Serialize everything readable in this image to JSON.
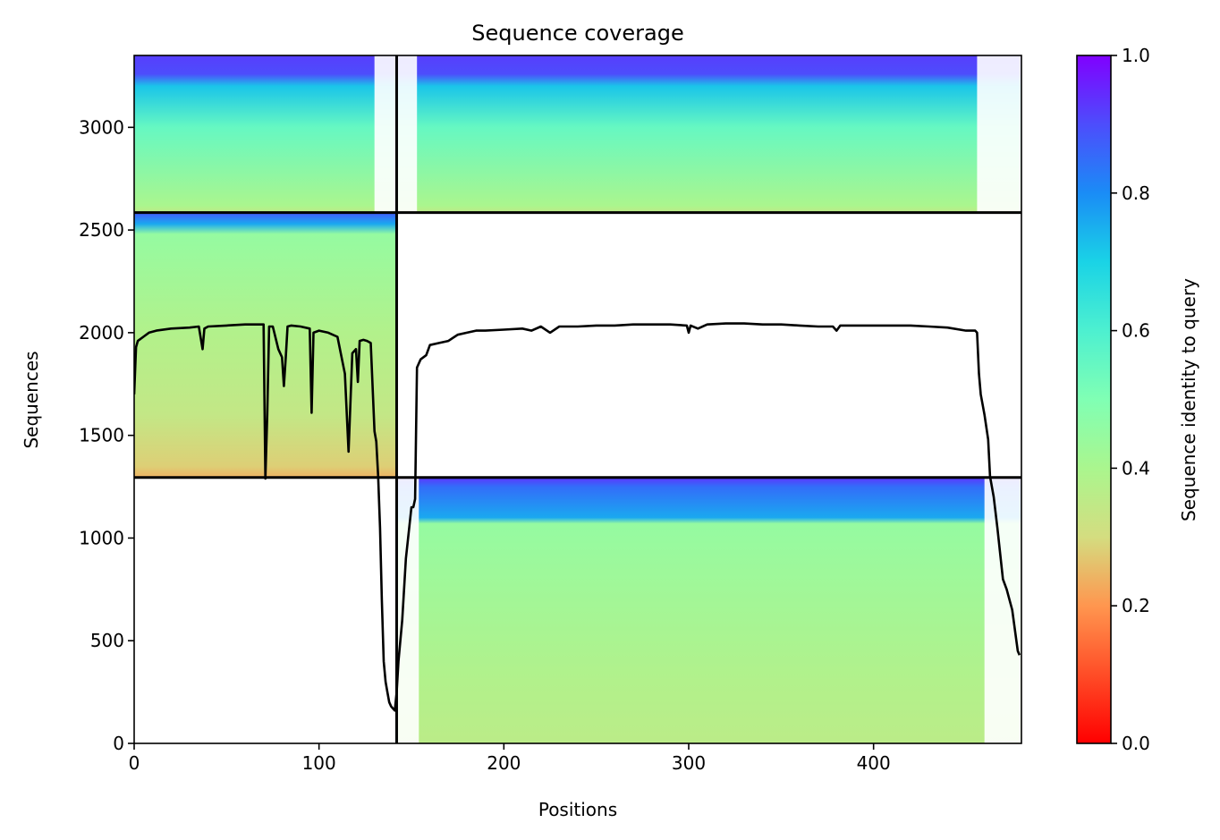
{
  "chart_data": {
    "type": "heatmap",
    "title": "Sequence coverage",
    "xlabel": "Positions",
    "ylabel": "Sequences",
    "xlim": [
      0,
      480
    ],
    "ylim": [
      0,
      3350
    ],
    "x_ticks": [
      0,
      100,
      200,
      300,
      400
    ],
    "y_ticks": [
      0,
      500,
      1000,
      1500,
      2000,
      2500,
      3000
    ],
    "colorbar": {
      "label": "Sequence identity to query",
      "range": [
        0,
        1
      ],
      "ticks": [
        0.0,
        0.2,
        0.4,
        0.6,
        0.8,
        1.0
      ],
      "tick_labels": [
        "0.0",
        "0.2",
        "0.4",
        "0.6",
        "0.8",
        "1.0"
      ],
      "colormap": "rainbow"
    },
    "boundaries": {
      "x_split": 142,
      "y_splits": [
        1295,
        2585
      ]
    },
    "blocks": [
      {
        "name": "top-full",
        "x_range": [
          0,
          480
        ],
        "y_range": [
          2585,
          3350
        ],
        "gaps_x": [
          [
            130,
            142
          ],
          [
            142,
            153
          ],
          [
            456,
            480
          ]
        ],
        "identity_bands": [
          [
            2585,
            0.35
          ],
          [
            2620,
            0.4
          ],
          [
            3000,
            0.55
          ],
          [
            3200,
            0.72
          ],
          [
            3260,
            0.9
          ],
          [
            3350,
            0.92
          ]
        ]
      },
      {
        "name": "middle-left",
        "x_range": [
          0,
          142
        ],
        "y_range": [
          1295,
          2585
        ],
        "gaps_x": [],
        "identity_bands": [
          [
            1295,
            0.24
          ],
          [
            1350,
            0.28
          ],
          [
            1600,
            0.34
          ],
          [
            2000,
            0.38
          ],
          [
            2480,
            0.45
          ],
          [
            2530,
            0.76
          ],
          [
            2585,
            0.88
          ]
        ]
      },
      {
        "name": "bottom-right",
        "x_range": [
          142,
          480
        ],
        "y_range": [
          0,
          1295
        ],
        "gaps_x": [
          [
            142,
            154
          ],
          [
            460,
            480
          ]
        ],
        "identity_bands": [
          [
            0,
            0.36
          ],
          [
            300,
            0.38
          ],
          [
            1070,
            0.45
          ],
          [
            1100,
            0.76
          ],
          [
            1250,
            0.85
          ],
          [
            1295,
            0.93
          ]
        ]
      }
    ],
    "series": [
      {
        "type": "line",
        "x": [
          0,
          1,
          2,
          5,
          8,
          12,
          20,
          30,
          35,
          37,
          38,
          40,
          50,
          60,
          70,
          71,
          72,
          73,
          75,
          78,
          80,
          81,
          82,
          83,
          85,
          90,
          95,
          96,
          97,
          100,
          105,
          110,
          114,
          116,
          118,
          120,
          121,
          122,
          124,
          126,
          128,
          130,
          131,
          132,
          133,
          134,
          135,
          136,
          137,
          138,
          139,
          140,
          141,
          142,
          143,
          145,
          147,
          150,
          151,
          152,
          153,
          155,
          158,
          160,
          165,
          170,
          175,
          180,
          185,
          190,
          200,
          210,
          215,
          220,
          225,
          230,
          240,
          250,
          260,
          270,
          280,
          290,
          299,
          300,
          301,
          305,
          310,
          320,
          330,
          340,
          350,
          360,
          370,
          378,
          380,
          382,
          390,
          400,
          410,
          420,
          430,
          440,
          450,
          455,
          456,
          457,
          458,
          460,
          462,
          463,
          465,
          467,
          470,
          472,
          475,
          478,
          479
        ],
        "y": [
          1700,
          1930,
          1960,
          1980,
          2000,
          2010,
          2020,
          2025,
          2030,
          1920,
          2020,
          2030,
          2035,
          2040,
          2040,
          1290,
          1600,
          2030,
          2030,
          1920,
          1880,
          1740,
          1880,
          2030,
          2035,
          2030,
          2020,
          1610,
          2000,
          2010,
          2000,
          1980,
          1800,
          1420,
          1900,
          1920,
          1760,
          1960,
          1965,
          1960,
          1950,
          1520,
          1470,
          1300,
          1050,
          700,
          400,
          300,
          250,
          200,
          180,
          170,
          160,
          250,
          400,
          600,
          900,
          1150,
          1150,
          1190,
          1830,
          1870,
          1890,
          1940,
          1950,
          1960,
          1990,
          2000,
          2010,
          2010,
          2015,
          2020,
          2010,
          2030,
          2000,
          2030,
          2030,
          2035,
          2035,
          2040,
          2040,
          2040,
          2035,
          2000,
          2035,
          2020,
          2040,
          2045,
          2045,
          2040,
          2040,
          2035,
          2030,
          2030,
          2010,
          2035,
          2035,
          2035,
          2035,
          2035,
          2030,
          2025,
          2010,
          2010,
          2000,
          1800,
          1700,
          1600,
          1480,
          1300,
          1200,
          1050,
          800,
          750,
          650,
          450,
          430
        ]
      }
    ]
  }
}
